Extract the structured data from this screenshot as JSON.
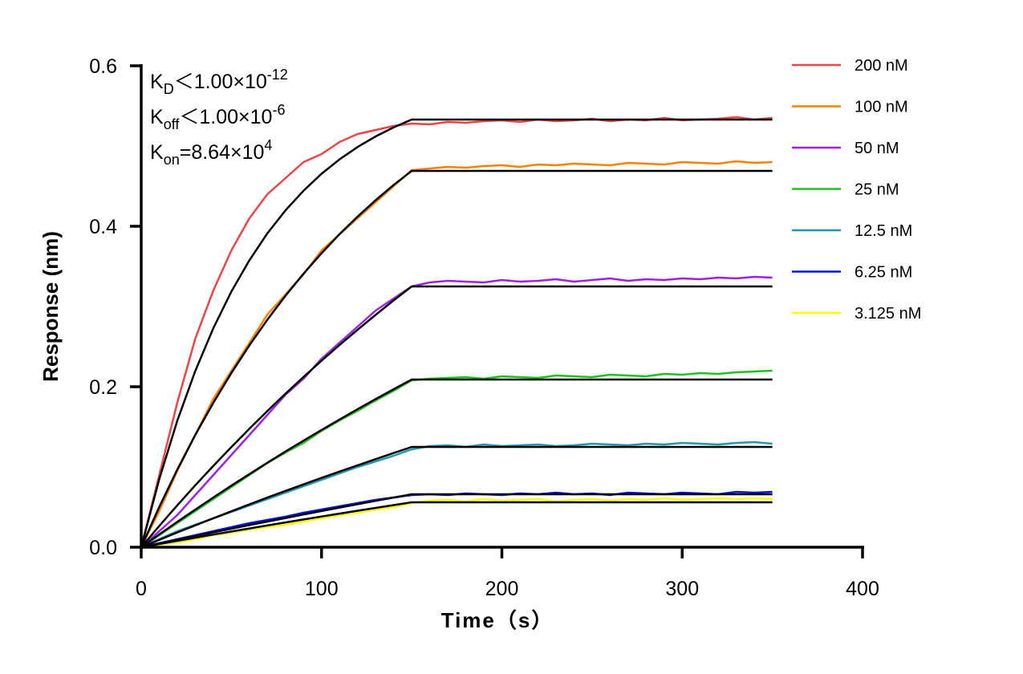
{
  "chart_data": {
    "type": "line",
    "xlabel": "Time（s）",
    "ylabel": "Response (nm)",
    "xlim": [
      0,
      400
    ],
    "ylim": [
      0,
      0.6
    ],
    "xticks": [
      "0",
      "100",
      "200",
      "300",
      "400"
    ],
    "yticks": [
      "0.0",
      "0.2",
      "0.4",
      "0.6"
    ],
    "xtick_values": [
      0,
      100,
      200,
      300,
      400
    ],
    "ytick_values": [
      0,
      0.2,
      0.4,
      0.6
    ],
    "grid": false,
    "legend_position": "right",
    "annotations": [
      {
        "symbol": "K",
        "sub": "D",
        "relation": "＜",
        "value": "1.00×10",
        "exp": "-12"
      },
      {
        "symbol": "K",
        "sub": "off",
        "relation": "＜",
        "value": "1.00×10",
        "exp": "-6"
      },
      {
        "symbol": "K",
        "sub": "on",
        "relation": "=",
        "value": "8.64×10",
        "exp": "4"
      }
    ],
    "x": [
      0,
      10,
      20,
      30,
      40,
      50,
      60,
      70,
      80,
      90,
      100,
      110,
      120,
      130,
      140,
      150,
      160,
      170,
      180,
      190,
      200,
      210,
      220,
      230,
      240,
      250,
      260,
      270,
      280,
      290,
      300,
      310,
      320,
      330,
      340,
      350
    ],
    "series": [
      {
        "name": "200 nM",
        "color": "#f04444",
        "values": [
          0,
          0.09,
          0.18,
          0.26,
          0.32,
          0.37,
          0.41,
          0.44,
          0.46,
          0.48,
          0.49,
          0.505,
          0.515,
          0.52,
          0.525,
          0.528,
          0.527,
          0.53,
          0.529,
          0.531,
          0.532,
          0.53,
          0.533,
          0.531,
          0.532,
          0.534,
          0.531,
          0.533,
          0.532,
          0.535,
          0.532,
          0.533,
          0.534,
          0.536,
          0.533,
          0.535
        ]
      },
      {
        "name": "100 nM",
        "color": "#ff8000",
        "values": [
          0,
          0.045,
          0.095,
          0.14,
          0.185,
          0.22,
          0.255,
          0.29,
          0.315,
          0.34,
          0.37,
          0.39,
          0.41,
          0.43,
          0.45,
          0.47,
          0.472,
          0.474,
          0.473,
          0.475,
          0.476,
          0.474,
          0.477,
          0.476,
          0.478,
          0.477,
          0.476,
          0.479,
          0.478,
          0.477,
          0.48,
          0.479,
          0.478,
          0.481,
          0.479,
          0.48
        ]
      },
      {
        "name": "50 nM",
        "color": "#a020e8",
        "values": [
          0,
          0.02,
          0.04,
          0.065,
          0.09,
          0.115,
          0.14,
          0.165,
          0.19,
          0.21,
          0.235,
          0.255,
          0.275,
          0.295,
          0.31,
          0.325,
          0.33,
          0.332,
          0.331,
          0.33,
          0.333,
          0.331,
          0.332,
          0.334,
          0.331,
          0.333,
          0.335,
          0.332,
          0.334,
          0.333,
          0.335,
          0.334,
          0.336,
          0.335,
          0.337,
          0.336
        ]
      },
      {
        "name": "25 nM",
        "color": "#20c020",
        "values": [
          0,
          0.015,
          0.03,
          0.045,
          0.06,
          0.075,
          0.09,
          0.105,
          0.118,
          0.13,
          0.145,
          0.158,
          0.17,
          0.183,
          0.195,
          0.208,
          0.21,
          0.211,
          0.212,
          0.21,
          0.213,
          0.212,
          0.211,
          0.214,
          0.213,
          0.212,
          0.215,
          0.214,
          0.213,
          0.216,
          0.215,
          0.217,
          0.216,
          0.218,
          0.219,
          0.22
        ]
      },
      {
        "name": "12.5 nM",
        "color": "#2098b0",
        "values": [
          0,
          0.01,
          0.02,
          0.028,
          0.036,
          0.044,
          0.052,
          0.06,
          0.068,
          0.076,
          0.084,
          0.092,
          0.1,
          0.107,
          0.114,
          0.122,
          0.126,
          0.127,
          0.125,
          0.128,
          0.126,
          0.127,
          0.128,
          0.126,
          0.127,
          0.129,
          0.128,
          0.127,
          0.129,
          0.128,
          0.13,
          0.129,
          0.128,
          0.13,
          0.131,
          0.129
        ]
      },
      {
        "name": "6.25 nM",
        "color": "#0010f0",
        "values": [
          0,
          0.005,
          0.01,
          0.015,
          0.02,
          0.025,
          0.03,
          0.034,
          0.038,
          0.043,
          0.047,
          0.051,
          0.055,
          0.059,
          0.062,
          0.065,
          0.066,
          0.065,
          0.067,
          0.066,
          0.065,
          0.067,
          0.066,
          0.068,
          0.066,
          0.067,
          0.065,
          0.068,
          0.067,
          0.066,
          0.068,
          0.067,
          0.066,
          0.069,
          0.068,
          0.069
        ]
      },
      {
        "name": "3.125 nM",
        "color": "#ffff00",
        "values": [
          0,
          0.003,
          0.006,
          0.01,
          0.015,
          0.018,
          0.022,
          0.025,
          0.028,
          0.032,
          0.036,
          0.04,
          0.043,
          0.047,
          0.05,
          0.055,
          0.058,
          0.059,
          0.057,
          0.06,
          0.058,
          0.059,
          0.06,
          0.057,
          0.059,
          0.06,
          0.058,
          0.06,
          0.059,
          0.061,
          0.059,
          0.06,
          0.061,
          0.06,
          0.061,
          0.06
        ]
      }
    ],
    "fit": {
      "color": "#000000",
      "x": [
        0,
        10,
        20,
        30,
        40,
        50,
        60,
        70,
        80,
        90,
        100,
        110,
        120,
        130,
        140,
        150,
        350
      ],
      "curves": [
        [
          0,
          0.0849,
          0.1575,
          0.2197,
          0.273,
          0.3187,
          0.3577,
          0.3913,
          0.4198,
          0.4443,
          0.4655,
          0.4834,
          0.4988,
          0.512,
          0.5233,
          0.533,
          0.533
        ],
        [
          0,
          0.0502,
          0.0967,
          0.14,
          0.18,
          0.2172,
          0.2517,
          0.2836,
          0.3134,
          0.3409,
          0.3664,
          0.3902,
          0.4121,
          0.4325,
          0.4515,
          0.469,
          0.469
        ],
        [
          0,
          0.0265,
          0.0522,
          0.0772,
          0.1014,
          0.1249,
          0.1477,
          0.1699,
          0.1914,
          0.2122,
          0.2325,
          0.2521,
          0.2711,
          0.2896,
          0.3076,
          0.325,
          0.325
        ],
        [
          0,
          0.016,
          0.0316,
          0.0469,
          0.062,
          0.0768,
          0.0912,
          0.1053,
          0.1193,
          0.1328,
          0.1462,
          0.1592,
          0.1721,
          0.1846,
          0.1969,
          0.209,
          0.209
        ],
        [
          0,
          0.0092,
          0.0184,
          0.0273,
          0.0361,
          0.0448,
          0.0534,
          0.0619,
          0.0702,
          0.0783,
          0.0864,
          0.0943,
          0.1021,
          0.1098,
          0.1174,
          0.125,
          0.125
        ],
        [
          0,
          0.0047,
          0.0094,
          0.014,
          0.0186,
          0.0231,
          0.0276,
          0.032,
          0.0364,
          0.0408,
          0.0451,
          0.0494,
          0.0536,
          0.0578,
          0.0619,
          0.066,
          0.066
        ],
        [
          0,
          0.004,
          0.008,
          0.0119,
          0.0158,
          0.0196,
          0.0234,
          0.0272,
          0.0309,
          0.0346,
          0.0383,
          0.0419,
          0.0455,
          0.049,
          0.0525,
          0.056,
          0.056
        ]
      ]
    }
  }
}
